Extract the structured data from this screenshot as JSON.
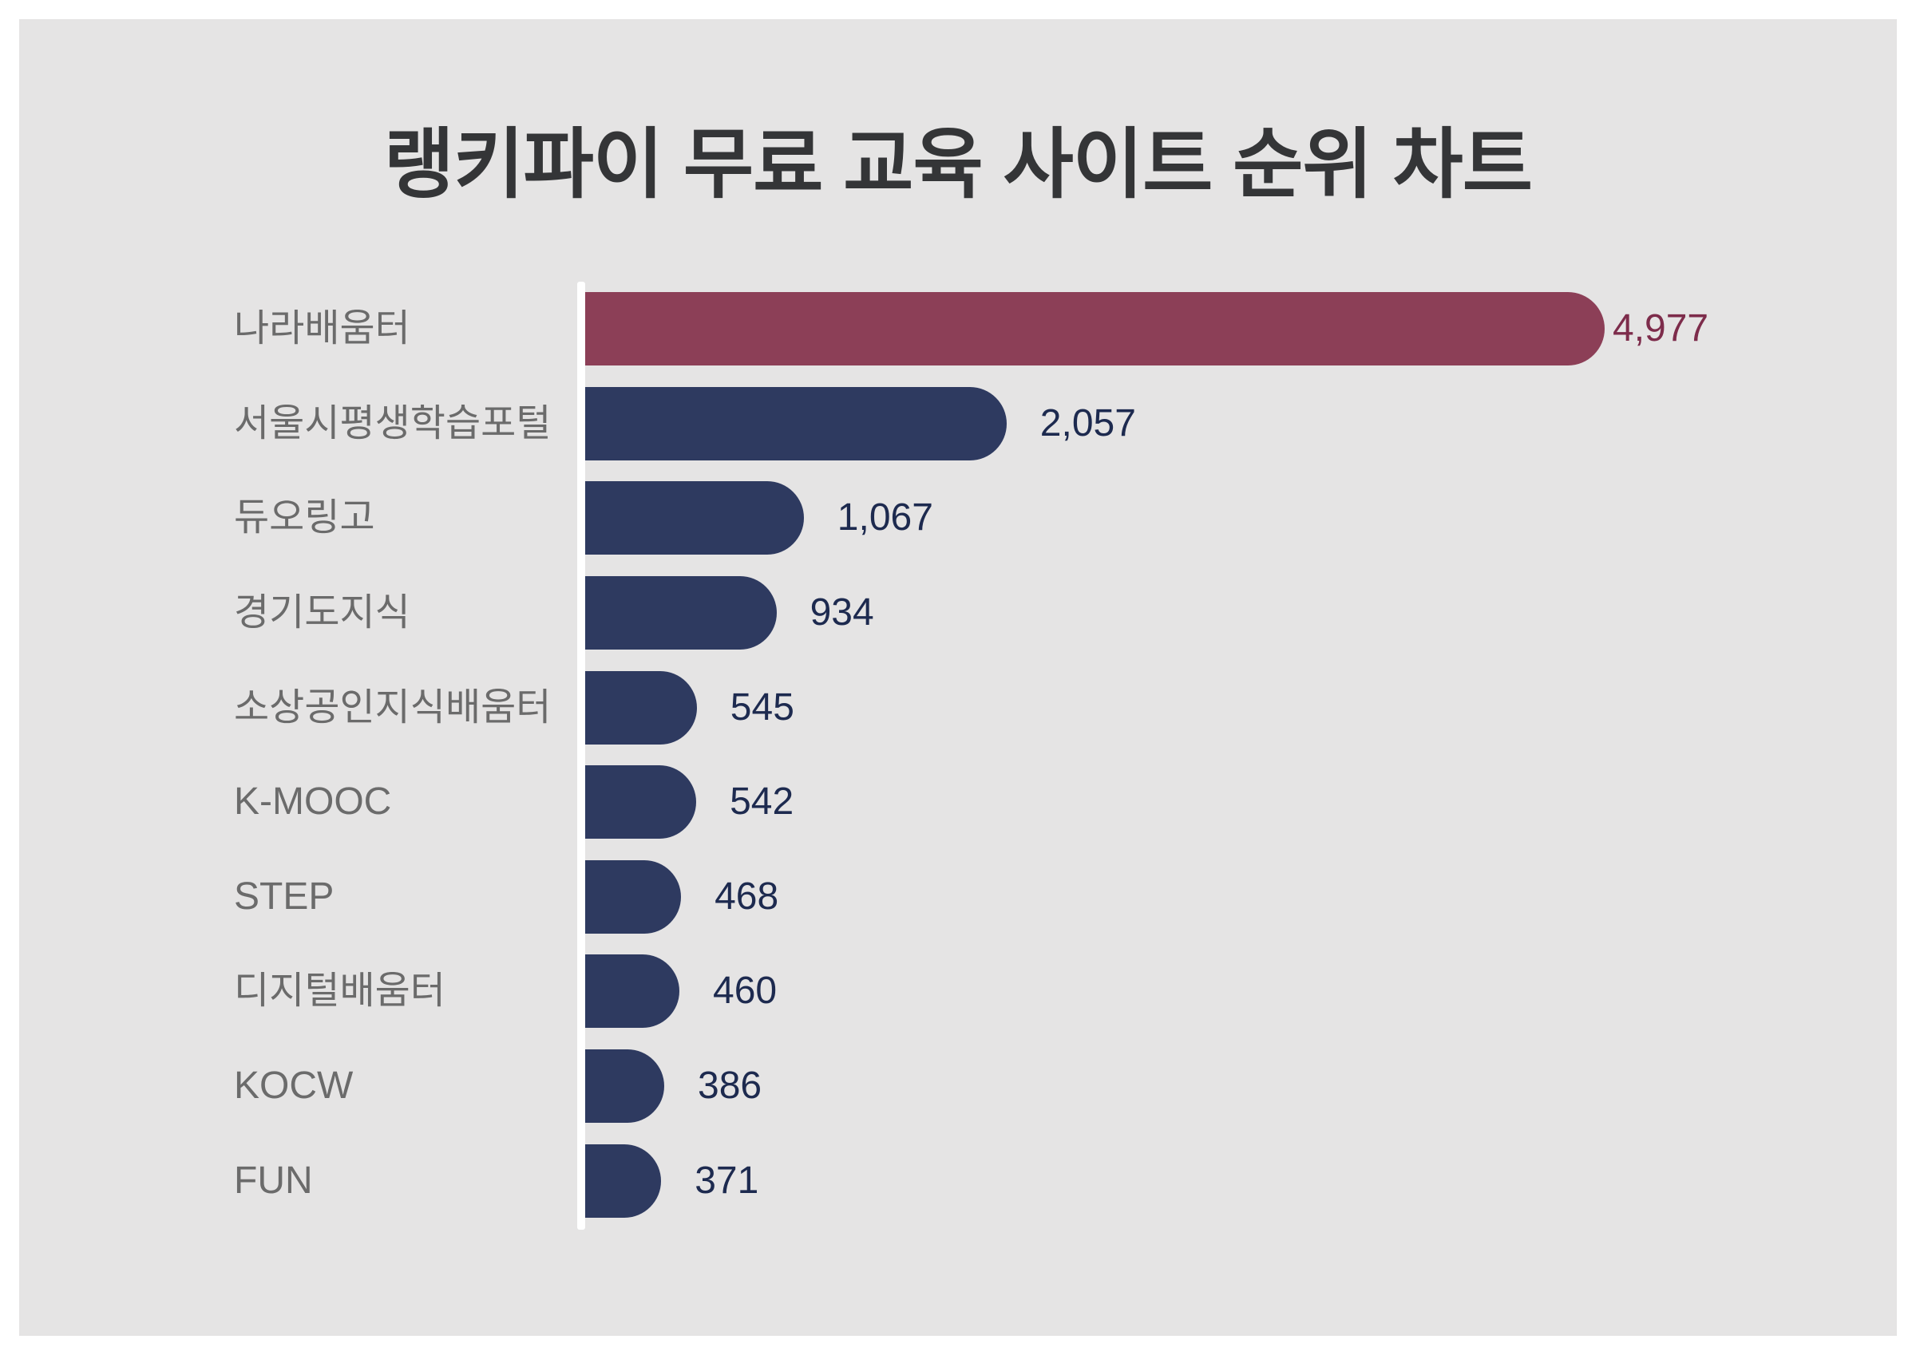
{
  "chart_data": {
    "type": "bar",
    "orientation": "horizontal",
    "title": "랭키파이 무료 교육 사이트 순위 차트",
    "categories": [
      "나라배움터",
      "서울시평생학습포털",
      "듀오링고",
      "경기도지식",
      "소상공인지식배움터",
      "K-MOOC",
      "STEP",
      "디지털배움터",
      "KOCW",
      "FUN"
    ],
    "values": [
      4977,
      2057,
      1067,
      934,
      545,
      542,
      468,
      460,
      386,
      371
    ],
    "value_labels": [
      "4,977",
      "2,057",
      "1,067",
      "934",
      "545",
      "542",
      "468",
      "460",
      "386",
      "371"
    ],
    "xlim": [
      0,
      4977
    ],
    "grid": false,
    "legend": false,
    "highlight_index": 0,
    "bar_style": "rounded-right-pill"
  },
  "colors": {
    "background": "#ffffff",
    "panel_background": "#e5e4e4",
    "bar": "#2e3a60",
    "bar_highlight": "#8c3f57",
    "value_text": "#1d2a4f",
    "value_text_highlight": "#7d2c4b",
    "category_text": "#6b6b6b",
    "title_text": "#343537",
    "axis_line": "#ffffff"
  }
}
